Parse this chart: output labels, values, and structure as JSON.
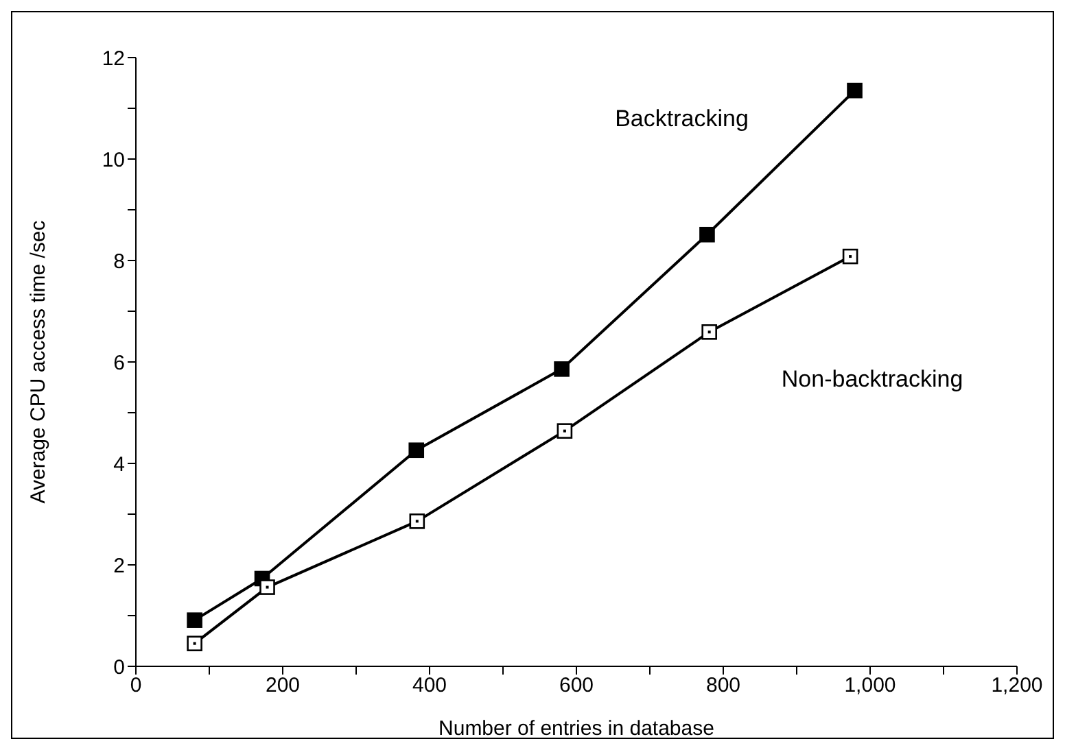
{
  "chart_data": {
    "type": "line",
    "xlabel": "Number of entries in database",
    "ylabel": "Average CPU access time /sec",
    "xlim": [
      0,
      1200
    ],
    "xticks": [
      0,
      {
        "value": 100,
        "label": null
      },
      200,
      {
        "value": 300,
        "label": null
      },
      400,
      {
        "value": 500,
        "label": null
      },
      600,
      {
        "value": 700,
        "label": null
      },
      800,
      {
        "value": 900,
        "label": null
      },
      {
        "value": 1000,
        "label": "1,000"
      },
      {
        "value": 1100,
        "label": null
      },
      {
        "value": 1200,
        "label": "1,200"
      }
    ],
    "ylim": [
      0,
      12
    ],
    "yticks": [
      0,
      {
        "value": 1,
        "label": null
      },
      2,
      {
        "value": 3,
        "label": null
      },
      4,
      {
        "value": 5,
        "label": null
      },
      6,
      {
        "value": 7,
        "label": null
      },
      8,
      {
        "value": 9,
        "label": null
      },
      10,
      {
        "value": 11,
        "label": null
      },
      12
    ],
    "legend": false,
    "marker": "square",
    "line_style": "solid",
    "series": [
      {
        "name": "Backtracking",
        "color": "#000000",
        "x": [
          80,
          172,
          382,
          580,
          778,
          979
        ],
        "values": [
          0.91,
          1.73,
          4.26,
          5.86,
          8.51,
          11.35
        ]
      },
      {
        "name": "Non-backtracking",
        "color": "#000000",
        "x": [
          80,
          179,
          383,
          584,
          781,
          973
        ],
        "values": [
          0.45,
          1.56,
          2.86,
          4.64,
          6.59,
          8.08
        ]
      }
    ]
  }
}
